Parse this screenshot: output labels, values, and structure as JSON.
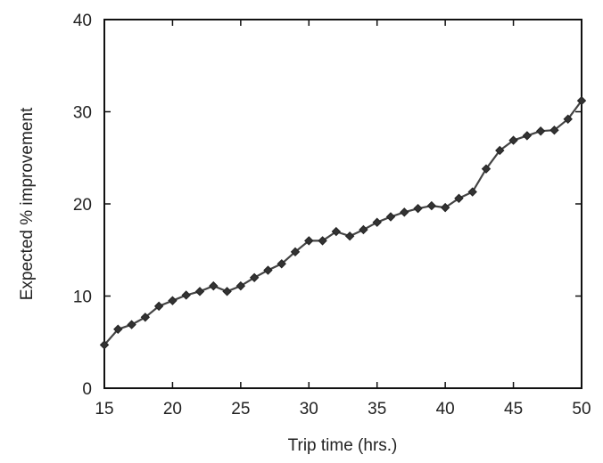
{
  "chart_data": {
    "type": "line",
    "title": "",
    "xlabel": "Trip time (hrs.)",
    "ylabel": "Expected % improvement",
    "xlim": [
      15,
      50
    ],
    "ylim": [
      0,
      40
    ],
    "xticks": [
      15,
      20,
      25,
      30,
      35,
      40,
      45,
      50
    ],
    "yticks": [
      0,
      10,
      20,
      30,
      40
    ],
    "grid": false,
    "legend": "none",
    "series": [
      {
        "color": "#444444",
        "marker": "diamond",
        "points": [
          [
            15,
            4.7
          ],
          [
            16,
            6.4
          ],
          [
            17,
            6.9
          ],
          [
            18,
            7.7
          ],
          [
            19,
            8.9
          ],
          [
            20,
            9.5
          ],
          [
            21,
            10.1
          ],
          [
            22,
            10.5
          ],
          [
            23,
            11.1
          ],
          [
            24,
            10.5
          ],
          [
            25,
            11.1
          ],
          [
            26,
            12.0
          ],
          [
            27,
            12.8
          ],
          [
            28,
            13.5
          ],
          [
            29,
            14.8
          ],
          [
            30,
            16.0
          ],
          [
            31,
            16.0
          ],
          [
            32,
            17.0
          ],
          [
            33,
            16.5
          ],
          [
            34,
            17.2
          ],
          [
            35,
            18.0
          ],
          [
            36,
            18.6
          ],
          [
            37,
            19.1
          ],
          [
            38,
            19.5
          ],
          [
            39,
            19.8
          ],
          [
            40,
            19.6
          ],
          [
            41,
            20.6
          ],
          [
            42,
            21.3
          ],
          [
            43,
            23.8
          ],
          [
            44,
            25.8
          ],
          [
            45,
            26.9
          ],
          [
            46,
            27.4
          ],
          [
            47,
            27.9
          ],
          [
            48,
            28.0
          ],
          [
            49,
            29.2
          ],
          [
            50,
            31.2
          ]
        ]
      }
    ]
  }
}
